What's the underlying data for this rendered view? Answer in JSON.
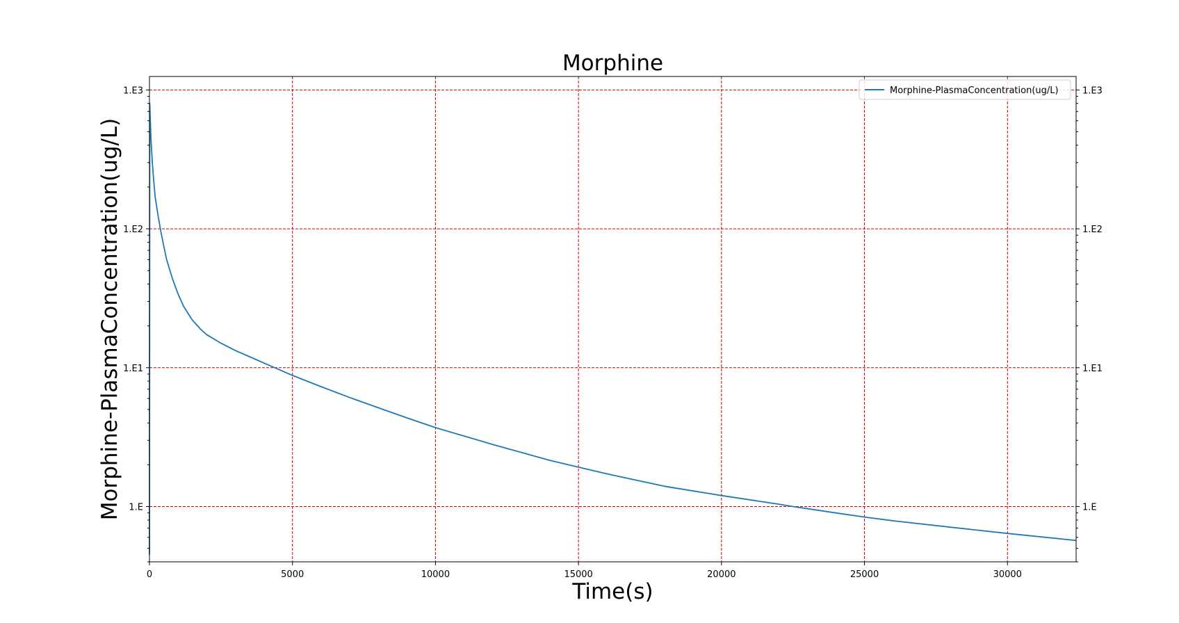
{
  "chart_data": {
    "type": "line",
    "title": "Morphine",
    "xlabel": "Time(s)",
    "ylabel": "Morphine-PlasmaConcentration(ug/L)",
    "xlim": [
      0,
      32400
    ],
    "ylim": [
      0.4,
      1250
    ],
    "yscale": "log",
    "x_ticks": [
      0,
      5000,
      10000,
      15000,
      20000,
      25000,
      30000
    ],
    "x_tick_labels": [
      "0",
      "5000",
      "10000",
      "15000",
      "20000",
      "25000",
      "30000"
    ],
    "y_ticks": [
      1,
      10,
      100,
      1000
    ],
    "y_tick_labels": [
      "1.E",
      "1.E1",
      "1.E2",
      "1.E3"
    ],
    "right_y_tick_labels": [
      "1.E",
      "1.E1",
      "1.E2",
      "1.E3"
    ],
    "grid": true,
    "grid_color": "#cc0000",
    "legend_position": "top-right",
    "series": [
      {
        "name": "Morphine-PlasmaConcentration(ug/L)",
        "color": "#1f77b4",
        "x": [
          0,
          10,
          20,
          50,
          100,
          150,
          200,
          300,
          400,
          500,
          600,
          800,
          1000,
          1200,
          1500,
          1800,
          2000,
          2500,
          3000,
          3500,
          4000,
          5000,
          6000,
          7000,
          8000,
          9000,
          10000,
          12000,
          14000,
          15000,
          16000,
          18000,
          20000,
          22000,
          22500,
          24000,
          25000,
          26000,
          28000,
          30000,
          32400
        ],
        "y": [
          0.45,
          800,
          700,
          450,
          300,
          220,
          170,
          125,
          95,
          75,
          60,
          44,
          34,
          27.5,
          22,
          18.8,
          17.3,
          15.0,
          13.3,
          12.0,
          10.8,
          8.8,
          7.3,
          6.1,
          5.15,
          4.35,
          3.7,
          2.8,
          2.15,
          1.92,
          1.72,
          1.4,
          1.2,
          1.04,
          1.0,
          0.9,
          0.84,
          0.79,
          0.71,
          0.64,
          0.57
        ]
      }
    ]
  }
}
